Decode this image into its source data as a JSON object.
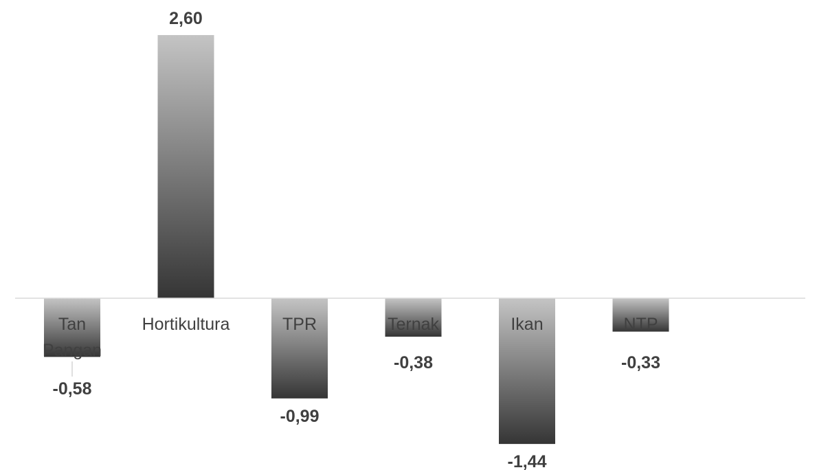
{
  "chart_data": {
    "type": "bar",
    "categories": [
      "Tan Pangan",
      "Hortikultura",
      "TPR",
      "Ternak",
      "Ikan",
      "NTP"
    ],
    "category_lines": [
      [
        "Tan",
        "Pangan"
      ],
      [
        "Hortikultura"
      ],
      [
        "TPR"
      ],
      [
        "Ternak"
      ],
      [
        "Ikan"
      ],
      [
        "NTP"
      ]
    ],
    "values": [
      -0.58,
      2.6,
      -0.99,
      -0.38,
      -1.44,
      -0.33
    ],
    "value_labels": [
      "-0,58",
      "2,60",
      "-0,99",
      "-0,38",
      "-1,44",
      "-0,33"
    ],
    "title": "",
    "xlabel": "",
    "ylabel": "",
    "grid": false,
    "legend": "none",
    "colors": {
      "bar_top": "#c4c4c4",
      "bar_bottom": "#353535",
      "axis": "#d9d9d9",
      "label": "#404040",
      "leader": "#bfbfbf"
    }
  }
}
